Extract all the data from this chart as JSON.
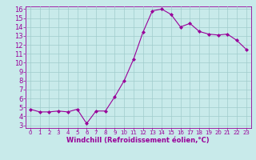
{
  "x": [
    0,
    1,
    2,
    3,
    4,
    5,
    6,
    7,
    8,
    9,
    10,
    11,
    12,
    13,
    14,
    15,
    16,
    17,
    18,
    19,
    20,
    21,
    22,
    23
  ],
  "y": [
    4.8,
    4.5,
    4.5,
    4.6,
    4.5,
    4.8,
    3.2,
    4.6,
    4.6,
    6.2,
    8.0,
    10.4,
    13.4,
    15.8,
    16.0,
    15.4,
    14.0,
    14.4,
    13.5,
    13.2,
    13.1,
    13.2,
    12.5,
    11.5
  ],
  "line_color": "#990099",
  "marker": "D",
  "marker_size": 2,
  "bg_color": "#c8eaea",
  "grid_color": "#a0cccc",
  "xlabel": "Windchill (Refroidissement éolien,°C)",
  "xlabel_color": "#990099",
  "tick_color": "#990099",
  "ylim": [
    3,
    16
  ],
  "xlim": [
    -0.5,
    23.5
  ],
  "yticks": [
    3,
    4,
    5,
    6,
    7,
    8,
    9,
    10,
    11,
    12,
    13,
    14,
    15,
    16
  ],
  "xticks": [
    0,
    1,
    2,
    3,
    4,
    5,
    6,
    7,
    8,
    9,
    10,
    11,
    12,
    13,
    14,
    15,
    16,
    17,
    18,
    19,
    20,
    21,
    22,
    23
  ],
  "ytick_fontsize": 6.0,
  "xtick_fontsize": 5.0,
  "xlabel_fontsize": 6.0
}
